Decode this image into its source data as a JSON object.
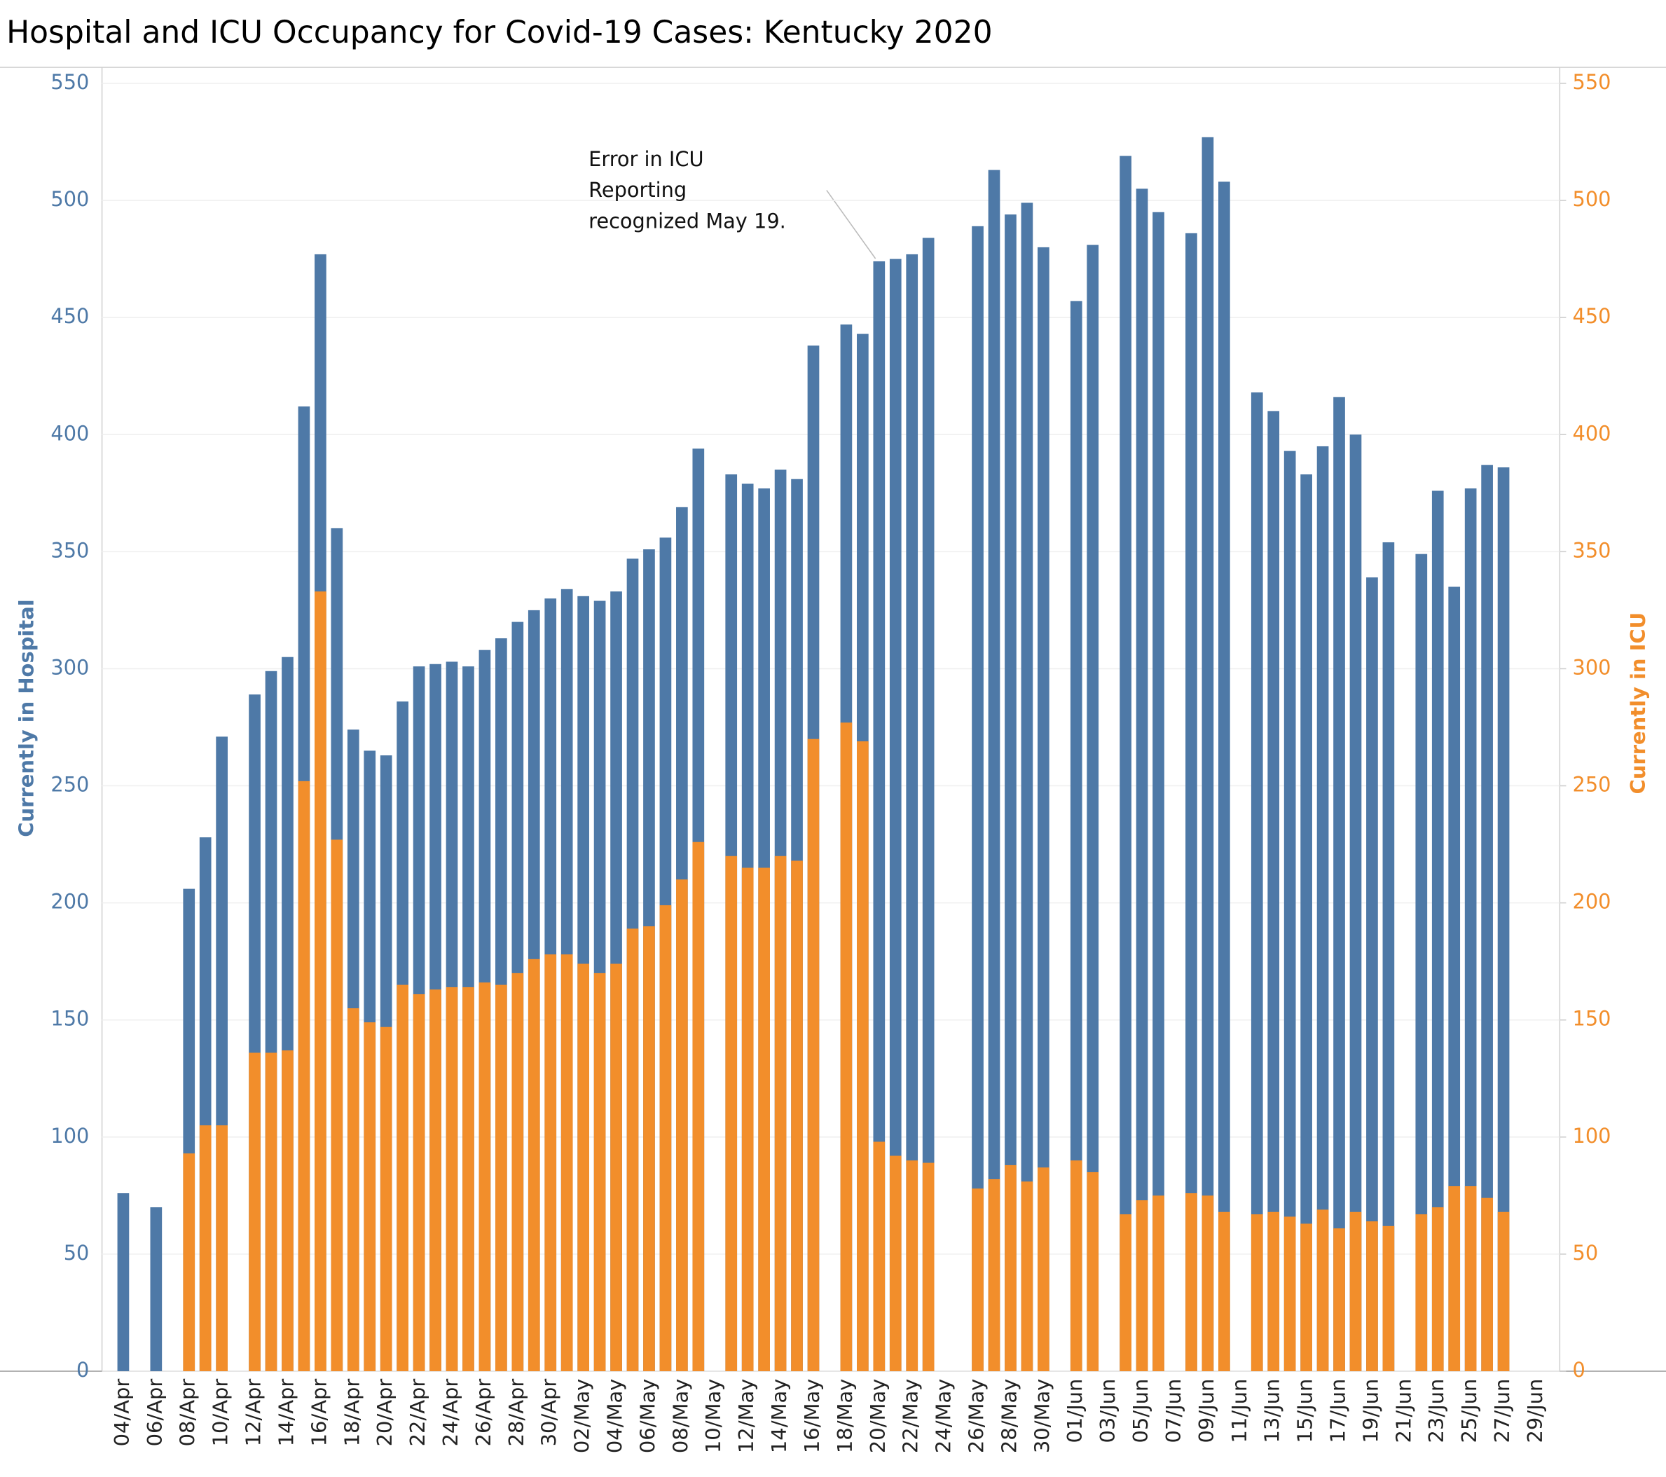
{
  "chart_data": {
    "type": "bar",
    "title": "Hospital and ICU Occupancy for Covid-19 Cases:  Kentucky 2020",
    "annotation": [
      "Error in ICU",
      "Reporting",
      "recognized May 19."
    ],
    "categories": [
      "04/Apr",
      null,
      "06/Apr",
      null,
      "08/Apr",
      null,
      "10/Apr",
      null,
      "12/Apr",
      null,
      "14/Apr",
      null,
      "16/Apr",
      null,
      "18/Apr",
      null,
      "20/Apr",
      null,
      "22/Apr",
      null,
      "24/Apr",
      null,
      "26/Apr",
      null,
      "28/Apr",
      null,
      "30/Apr",
      null,
      "02/May",
      null,
      "04/May",
      null,
      "06/May",
      null,
      "08/May",
      null,
      "10/May",
      null,
      "12/May",
      null,
      "14/May",
      null,
      "16/May",
      null,
      "18/May",
      null,
      "20/May",
      null,
      "22/May",
      null,
      "24/May",
      null,
      "26/May",
      null,
      "28/May",
      null,
      "30/May",
      null,
      "01/Jun",
      null,
      "03/Jun",
      null,
      "05/Jun",
      null,
      "07/Jun",
      null,
      "09/Jun",
      null,
      "11/Jun",
      null,
      "13/Jun",
      null,
      "15/Jun",
      null,
      "17/Jun",
      null,
      "19/Jun",
      null,
      "21/Jun",
      null,
      "23/Jun",
      null,
      "25/Jun",
      null,
      "27/Jun",
      null,
      "29/Jun"
    ],
    "series": [
      {
        "name": "Currently in Hospital",
        "color": "#4e79a7",
        "values": [
          76,
          null,
          70,
          null,
          206,
          228,
          271,
          null,
          289,
          299,
          305,
          412,
          477,
          360,
          274,
          265,
          263,
          286,
          301,
          302,
          303,
          301,
          308,
          313,
          320,
          325,
          330,
          334,
          331,
          329,
          333,
          347,
          351,
          356,
          369,
          394,
          null,
          383,
          379,
          377,
          385,
          381,
          438,
          null,
          447,
          443,
          474,
          475,
          477,
          484,
          null,
          null,
          489,
          513,
          494,
          499,
          480,
          null,
          457,
          481,
          null,
          519,
          505,
          495,
          null,
          486,
          527,
          508,
          null,
          418,
          410,
          393,
          383,
          395,
          416,
          400,
          339,
          354,
          null,
          349,
          376,
          335,
          377,
          387,
          386,
          null,
          null
        ]
      },
      {
        "name": "Currently in ICU",
        "color": "#f28e2b",
        "axis": "y2",
        "values": [
          null,
          null,
          null,
          null,
          93,
          105,
          105,
          null,
          136,
          136,
          137,
          252,
          333,
          227,
          155,
          149,
          147,
          165,
          161,
          163,
          164,
          164,
          166,
          165,
          170,
          176,
          178,
          178,
          174,
          170,
          174,
          189,
          190,
          199,
          210,
          226,
          null,
          220,
          215,
          215,
          220,
          218,
          270,
          null,
          277,
          269,
          98,
          92,
          90,
          89,
          null,
          null,
          78,
          82,
          88,
          81,
          87,
          null,
          90,
          85,
          null,
          67,
          73,
          75,
          null,
          76,
          75,
          68,
          null,
          67,
          68,
          66,
          63,
          69,
          61,
          68,
          64,
          62,
          null,
          67,
          70,
          79,
          79,
          74,
          68,
          null,
          null
        ]
      }
    ],
    "ylim": [
      0,
      550
    ],
    "yticks": [
      0,
      50,
      100,
      150,
      200,
      250,
      300,
      350,
      400,
      450,
      500,
      550
    ],
    "y2lim": [
      0,
      550
    ],
    "y2ticks": [
      0,
      50,
      100,
      150,
      200,
      250,
      300,
      350,
      400,
      450,
      500,
      550
    ],
    "grid": true
  }
}
